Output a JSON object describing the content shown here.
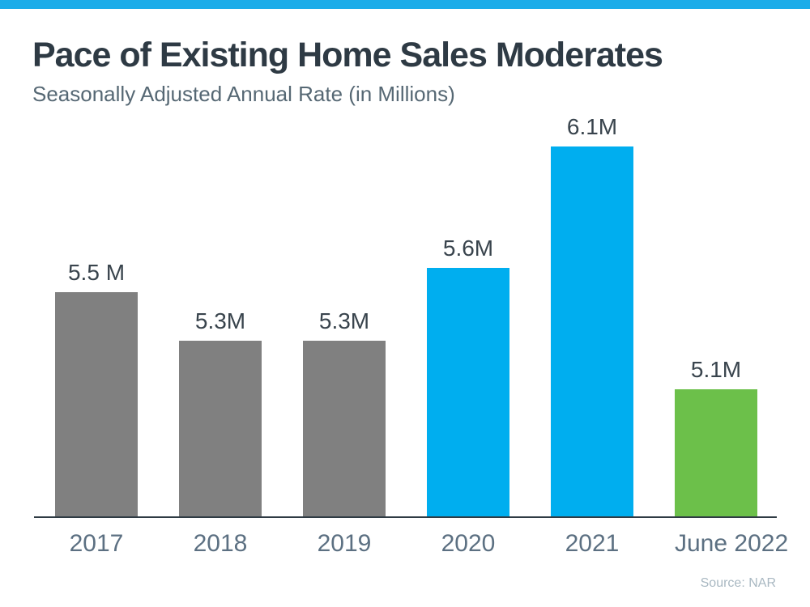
{
  "page": {
    "accent_color": "#1bace9"
  },
  "chart": {
    "title": "Pace of Existing Home Sales Moderates",
    "subtitle": "Seasonally Adjusted Annual Rate (in Millions)",
    "source": "Source: NAR"
  },
  "chart_data": {
    "type": "bar",
    "title": "Pace of Existing Home Sales Moderates",
    "subtitle": "Seasonally Adjusted Annual Rate (in Millions)",
    "categories": [
      "2017",
      "2018",
      "2019",
      "2020",
      "2021",
      "June 2022"
    ],
    "values": [
      5.5,
      5.3,
      5.3,
      5.6,
      6.1,
      5.1
    ],
    "data_labels": [
      "5.5 M",
      "5.3M",
      "5.3M",
      "5.6M",
      "6.1M",
      "5.1M"
    ],
    "bar_colors": [
      "gray",
      "gray",
      "gray",
      "blue",
      "blue",
      "green"
    ],
    "palette": {
      "gray": "#808080",
      "blue": "#00aeef",
      "green": "#6cc04a"
    },
    "xlabel": "",
    "ylabel": "",
    "ylim": [
      4.58,
      6.2
    ],
    "grid": false,
    "legend": false,
    "source": "Source: NAR"
  }
}
